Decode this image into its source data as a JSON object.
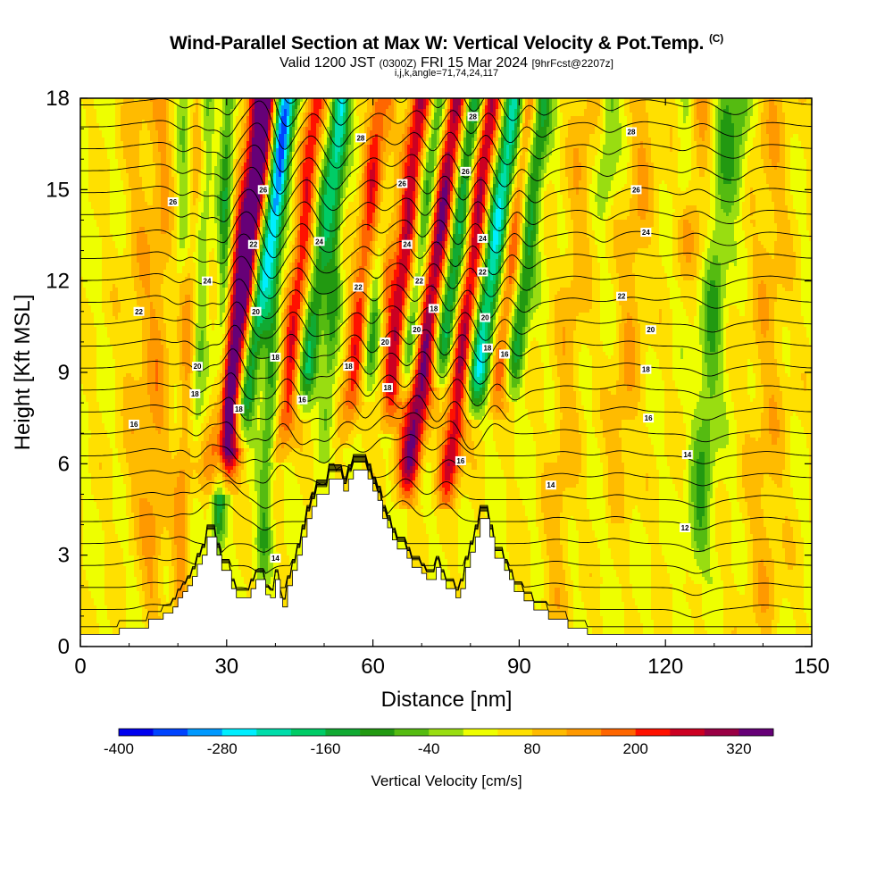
{
  "header": {
    "title": "Wind-Parallel Section at Max W: Vertical Velocity & Pot.Temp.",
    "copyright": "(C)",
    "valid_prefix": "Valid 1200 JST",
    "valid_zulu": "(0300Z)",
    "valid_date": "FRI 15 Mar 2024",
    "forecast": "[9hrFcst@2207z]",
    "section_info": "i,j,k,angle=71,74,24,117"
  },
  "chart_data": {
    "type": "heatmap",
    "title": "Wind-Parallel Section at Max W: Vertical Velocity & Pot.Temp.",
    "xlabel": "Distance [nm]",
    "ylabel": "Height [Kft MSL]",
    "xlim": [
      0,
      150
    ],
    "ylim": [
      0,
      18
    ],
    "x_ticks": [
      "0",
      "30",
      "60",
      "90",
      "120",
      "150"
    ],
    "y_ticks": [
      "0",
      "3",
      "6",
      "9",
      "12",
      "15",
      "18"
    ],
    "colorbar": {
      "label": "Vertical Velocity [cm/s]",
      "tick_labels": [
        "-400",
        "-280",
        "-160",
        "-40",
        "80",
        "200",
        "320"
      ],
      "colors": [
        "#0000ee",
        "#0044ff",
        "#0099ff",
        "#00eeff",
        "#00ddaa",
        "#00cc66",
        "#11aa33",
        "#229911",
        "#55bb11",
        "#99dd11",
        "#eeff00",
        "#ffe000",
        "#ffbb00",
        "#ff9900",
        "#ff6600",
        "#ff1100",
        "#cc0022",
        "#990044",
        "#660077"
      ]
    },
    "terrain_kft": [
      [
        0,
        0.4
      ],
      [
        8,
        0.4
      ],
      [
        8,
        0.6
      ],
      [
        14,
        0.6
      ],
      [
        14,
        0.9
      ],
      [
        17,
        0.9
      ],
      [
        17,
        1.1
      ],
      [
        19,
        1.1
      ],
      [
        19,
        1.3
      ],
      [
        20,
        1.3
      ],
      [
        20,
        1.6
      ],
      [
        21,
        1.6
      ],
      [
        21,
        1.8
      ],
      [
        22,
        1.8
      ],
      [
        22,
        2.0
      ],
      [
        23,
        2.0
      ],
      [
        23,
        2.3
      ],
      [
        24,
        2.3
      ],
      [
        24,
        2.7
      ],
      [
        25,
        2.7
      ],
      [
        25,
        3.0
      ],
      [
        26,
        3.0
      ],
      [
        26,
        3.6
      ],
      [
        28,
        3.6
      ],
      [
        28,
        3.0
      ],
      [
        29,
        3.0
      ],
      [
        29,
        2.5
      ],
      [
        31,
        2.5
      ],
      [
        31,
        1.9
      ],
      [
        32,
        1.9
      ],
      [
        32,
        1.6
      ],
      [
        35,
        1.6
      ],
      [
        35,
        1.9
      ],
      [
        36,
        1.9
      ],
      [
        36,
        2.2
      ],
      [
        38,
        2.2
      ],
      [
        38,
        1.7
      ],
      [
        39,
        1.7
      ],
      [
        39,
        1.6
      ],
      [
        40,
        1.6
      ],
      [
        40,
        2.2
      ],
      [
        41,
        2.2
      ],
      [
        41,
        1.6
      ],
      [
        41.5,
        1.6
      ],
      [
        41.5,
        1.3
      ],
      [
        42.5,
        1.3
      ],
      [
        42.5,
        2.0
      ],
      [
        43.5,
        2.0
      ],
      [
        43.5,
        2.5
      ],
      [
        44.5,
        2.5
      ],
      [
        44.5,
        3.0
      ],
      [
        45.5,
        3.0
      ],
      [
        45.5,
        3.6
      ],
      [
        46.5,
        3.6
      ],
      [
        46.5,
        4.2
      ],
      [
        47.5,
        4.2
      ],
      [
        47.5,
        4.6
      ],
      [
        48.5,
        4.6
      ],
      [
        48.5,
        5.0
      ],
      [
        51,
        5.0
      ],
      [
        51,
        5.5
      ],
      [
        54,
        5.5
      ],
      [
        54,
        5.1
      ],
      [
        55,
        5.1
      ],
      [
        55,
        5.5
      ],
      [
        56,
        5.5
      ],
      [
        56,
        5.8
      ],
      [
        59,
        5.8
      ],
      [
        59,
        5.5
      ],
      [
        60,
        5.5
      ],
      [
        60,
        5.1
      ],
      [
        61,
        5.1
      ],
      [
        61,
        4.8
      ],
      [
        62,
        4.8
      ],
      [
        62,
        4.2
      ],
      [
        63,
        4.2
      ],
      [
        63,
        3.9
      ],
      [
        64,
        3.9
      ],
      [
        64,
        3.5
      ],
      [
        65,
        3.5
      ],
      [
        65,
        3.2
      ],
      [
        67,
        3.2
      ],
      [
        67,
        2.9
      ],
      [
        68,
        2.9
      ],
      [
        68,
        2.6
      ],
      [
        70,
        2.6
      ],
      [
        70,
        2.4
      ],
      [
        71,
        2.4
      ],
      [
        71,
        2.2
      ],
      [
        73,
        2.2
      ],
      [
        73,
        2.6
      ],
      [
        74,
        2.6
      ],
      [
        74,
        2.2
      ],
      [
        75,
        2.2
      ],
      [
        75,
        1.9
      ],
      [
        77,
        1.9
      ],
      [
        77,
        1.6
      ],
      [
        78,
        1.6
      ],
      [
        78,
        1.9
      ],
      [
        79,
        1.9
      ],
      [
        79,
        2.6
      ],
      [
        80,
        2.6
      ],
      [
        80,
        3.1
      ],
      [
        81,
        3.1
      ],
      [
        81,
        3.6
      ],
      [
        82,
        3.6
      ],
      [
        82,
        4.2
      ],
      [
        84,
        4.2
      ],
      [
        84,
        3.6
      ],
      [
        85,
        3.6
      ],
      [
        85,
        2.9
      ],
      [
        87,
        2.9
      ],
      [
        87,
        2.5
      ],
      [
        88,
        2.5
      ],
      [
        88,
        2.2
      ],
      [
        89,
        2.2
      ],
      [
        89,
        1.8
      ],
      [
        91,
        1.8
      ],
      [
        91,
        1.5
      ],
      [
        93,
        1.5
      ],
      [
        93,
        1.2
      ],
      [
        96,
        1.2
      ],
      [
        96,
        0.9
      ],
      [
        100,
        0.9
      ],
      [
        100,
        0.6
      ],
      [
        104,
        0.6
      ],
      [
        104,
        0.4
      ],
      [
        150,
        0.4
      ]
    ],
    "updrafts_nm": [
      {
        "x": 31.5,
        "w": 3.0,
        "tilt": 1.4,
        "min_kft": 5.0,
        "amp": 380
      },
      {
        "x": 43,
        "w": 2.0,
        "tilt": 1.2,
        "min_kft": 6.0,
        "amp": 190
      },
      {
        "x": 56,
        "w": 2.0,
        "tilt": 1.2,
        "min_kft": 6.5,
        "amp": 170
      },
      {
        "x": 64,
        "w": 2.2,
        "tilt": 1.3,
        "min_kft": 7.0,
        "amp": 240
      },
      {
        "x": 70,
        "w": 2.4,
        "tilt": 1.6,
        "min_kft": 4.5,
        "amp": 290
      },
      {
        "x": 78,
        "w": 2.2,
        "tilt": 1.4,
        "min_kft": 4.5,
        "amp": 250
      },
      {
        "x": 86,
        "w": 2.0,
        "tilt": 1.3,
        "min_kft": 7.5,
        "amp": 160
      },
      {
        "x": 61,
        "w": 1.8,
        "tilt": 0.8,
        "min_kft": 11.0,
        "amp": 160
      },
      {
        "x": 22,
        "w": 1.8,
        "tilt": 0.5,
        "min_kft": 0.0,
        "amp": 90
      },
      {
        "x": 16,
        "w": 2.5,
        "tilt": 0.3,
        "min_kft": 0.0,
        "amp": 70
      },
      {
        "x": 12,
        "w": 3.5,
        "tilt": 0.1,
        "min_kft": 3.0,
        "amp": 50
      },
      {
        "x": 100,
        "w": 3.0,
        "tilt": 0.8,
        "min_kft": 0.0,
        "amp": 60
      },
      {
        "x": 112,
        "w": 3.0,
        "tilt": 0.9,
        "min_kft": 4.0,
        "amp": 70
      },
      {
        "x": 124,
        "w": 4.0,
        "tilt": 0.6,
        "min_kft": 12.0,
        "amp": 80
      },
      {
        "x": 141,
        "w": 4.0,
        "tilt": 0.2,
        "min_kft": 0.0,
        "amp": 60
      }
    ],
    "downdrafts_nm": [
      {
        "x": 34.5,
        "w": 2.2,
        "tilt": 1.8,
        "min_kft": 6.5,
        "amp": -300
      },
      {
        "x": 46.5,
        "w": 2.0,
        "tilt": 1.5,
        "min_kft": 7.5,
        "amp": -180
      },
      {
        "x": 59,
        "w": 1.6,
        "tilt": 1.4,
        "min_kft": 8.0,
        "amp": -140
      },
      {
        "x": 67,
        "w": 2.0,
        "tilt": 1.5,
        "min_kft": 8.0,
        "amp": -160
      },
      {
        "x": 74,
        "w": 2.0,
        "tilt": 1.5,
        "min_kft": 8.5,
        "amp": -220
      },
      {
        "x": 81.5,
        "w": 2.4,
        "tilt": 1.7,
        "min_kft": 7.5,
        "amp": -280
      },
      {
        "x": 89,
        "w": 2.0,
        "tilt": 1.3,
        "min_kft": 8.0,
        "amp": -170
      },
      {
        "x": 29,
        "w": 1.4,
        "tilt": 0.3,
        "min_kft": 2.5,
        "amp": -150
      },
      {
        "x": 24,
        "w": 1.6,
        "tilt": 0.4,
        "min_kft": 6.0,
        "amp": -90
      },
      {
        "x": 20,
        "w": 1.8,
        "tilt": 0.4,
        "min_kft": 12.0,
        "amp": -80
      },
      {
        "x": 39,
        "w": 1.6,
        "tilt": 0.5,
        "min_kft": 2.0,
        "amp": -120
      },
      {
        "x": 51,
        "w": 1.6,
        "tilt": 0.6,
        "min_kft": 6.0,
        "amp": -110
      },
      {
        "x": 106,
        "w": 1.8,
        "tilt": 0.6,
        "min_kft": 14.0,
        "amp": -90
      },
      {
        "x": 121,
        "w": 2.0,
        "tilt": 0.8,
        "min_kft": 14.0,
        "amp": -90
      },
      {
        "x": 129,
        "w": 2.5,
        "tilt": 0.8,
        "min_kft": 2.0,
        "amp": -110
      },
      {
        "x": 133,
        "w": 2.0,
        "tilt": 0.6,
        "min_kft": 14.0,
        "amp": -90
      }
    ],
    "contour_labels": [
      {
        "text": "26",
        "x": 19,
        "y": 14.6
      },
      {
        "text": "24",
        "x": 26,
        "y": 12.0
      },
      {
        "text": "22",
        "x": 12,
        "y": 11.0
      },
      {
        "text": "20",
        "x": 24,
        "y": 9.2
      },
      {
        "text": "18",
        "x": 23.5,
        "y": 8.3
      },
      {
        "text": "16",
        "x": 11,
        "y": 7.3
      },
      {
        "text": "26",
        "x": 37.5,
        "y": 15.0
      },
      {
        "text": "22",
        "x": 35.5,
        "y": 13.2
      },
      {
        "text": "20",
        "x": 36,
        "y": 11.0
      },
      {
        "text": "18",
        "x": 32.5,
        "y": 7.8
      },
      {
        "text": "18",
        "x": 40,
        "y": 9.5
      },
      {
        "text": "24",
        "x": 49,
        "y": 13.3
      },
      {
        "text": "22",
        "x": 57,
        "y": 11.8
      },
      {
        "text": "16",
        "x": 45.5,
        "y": 8.1
      },
      {
        "text": "18",
        "x": 55,
        "y": 9.2
      },
      {
        "text": "14",
        "x": 40,
        "y": 2.9
      },
      {
        "text": "28",
        "x": 57.5,
        "y": 16.7
      },
      {
        "text": "26",
        "x": 66,
        "y": 15.2
      },
      {
        "text": "24",
        "x": 67,
        "y": 13.2
      },
      {
        "text": "22",
        "x": 69.5,
        "y": 12.0
      },
      {
        "text": "18",
        "x": 72.5,
        "y": 11.1
      },
      {
        "text": "20",
        "x": 69,
        "y": 10.4
      },
      {
        "text": "20",
        "x": 62.5,
        "y": 10.0
      },
      {
        "text": "18",
        "x": 63,
        "y": 8.5
      },
      {
        "text": "16",
        "x": 78,
        "y": 6.1
      },
      {
        "text": "28",
        "x": 80.5,
        "y": 17.4
      },
      {
        "text": "26",
        "x": 79,
        "y": 15.6
      },
      {
        "text": "24",
        "x": 82.5,
        "y": 13.4
      },
      {
        "text": "22",
        "x": 82.5,
        "y": 12.3
      },
      {
        "text": "20",
        "x": 83,
        "y": 10.8
      },
      {
        "text": "18",
        "x": 83.5,
        "y": 9.8
      },
      {
        "text": "16",
        "x": 87,
        "y": 9.6
      },
      {
        "text": "28",
        "x": 113,
        "y": 16.9
      },
      {
        "text": "26",
        "x": 114,
        "y": 15.0
      },
      {
        "text": "24",
        "x": 116,
        "y": 13.6
      },
      {
        "text": "22",
        "x": 111,
        "y": 11.5
      },
      {
        "text": "20",
        "x": 117,
        "y": 10.4
      },
      {
        "text": "18",
        "x": 116,
        "y": 9.1
      },
      {
        "text": "16",
        "x": 116.5,
        "y": 7.5
      },
      {
        "text": "14",
        "x": 124.5,
        "y": 6.3
      },
      {
        "text": "14",
        "x": 96.5,
        "y": 5.3
      },
      {
        "text": "12",
        "x": 124,
        "y": 3.9
      }
    ]
  }
}
